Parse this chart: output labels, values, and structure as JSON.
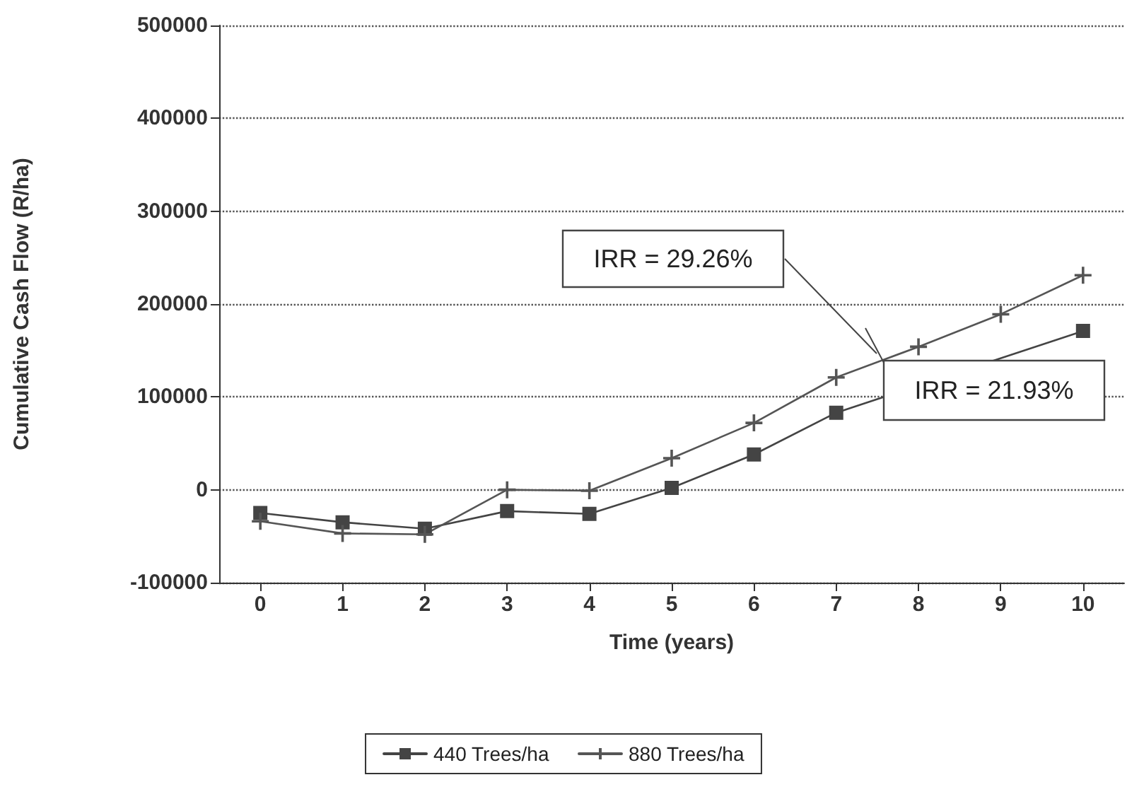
{
  "chart_data": {
    "type": "line",
    "xlabel": "Time (years)",
    "ylabel": "Cumulative Cash Flow (R/ha)",
    "categories": [
      "0",
      "1",
      "2",
      "3",
      "4",
      "5",
      "6",
      "7",
      "8",
      "9",
      "10"
    ],
    "series": [
      {
        "name": "440 Trees/ha",
        "color": "#444444",
        "marker": "square",
        "values": [
          -25000,
          -35000,
          -42000,
          -23000,
          -26000,
          2000,
          38000,
          83000,
          null,
          null,
          171000
        ]
      },
      {
        "name": "880 Trees/ha",
        "color": "#555555",
        "marker": "cross",
        "values": [
          -34000,
          -47000,
          -48000,
          0,
          -1000,
          34000,
          72000,
          121000,
          154000,
          189000,
          231000
        ]
      }
    ],
    "ylim": [
      -100000,
      500000
    ],
    "yticks": [
      -100000,
      0,
      100000,
      200000,
      300000,
      400000,
      500000
    ],
    "grid": "y",
    "legend": "bottom",
    "annotations": [
      "IRR = 29.26%",
      "IRR = 21.93%"
    ]
  }
}
